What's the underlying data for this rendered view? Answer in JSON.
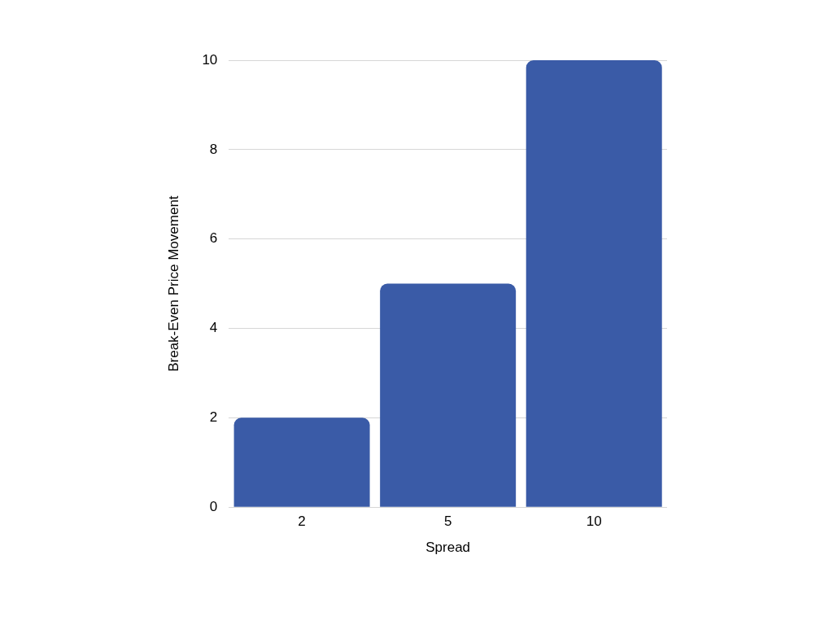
{
  "chart_data": {
    "type": "bar",
    "xlabel": "Spread",
    "ylabel": "Break-Even Price Movement",
    "categories": [
      "2",
      "5",
      "10"
    ],
    "values": [
      2,
      5,
      10
    ],
    "color": "#3a5ba7",
    "ylim": [
      0,
      10
    ],
    "yticks": [
      0,
      2,
      4,
      6,
      8,
      10
    ],
    "grid": "y",
    "legend": false
  }
}
